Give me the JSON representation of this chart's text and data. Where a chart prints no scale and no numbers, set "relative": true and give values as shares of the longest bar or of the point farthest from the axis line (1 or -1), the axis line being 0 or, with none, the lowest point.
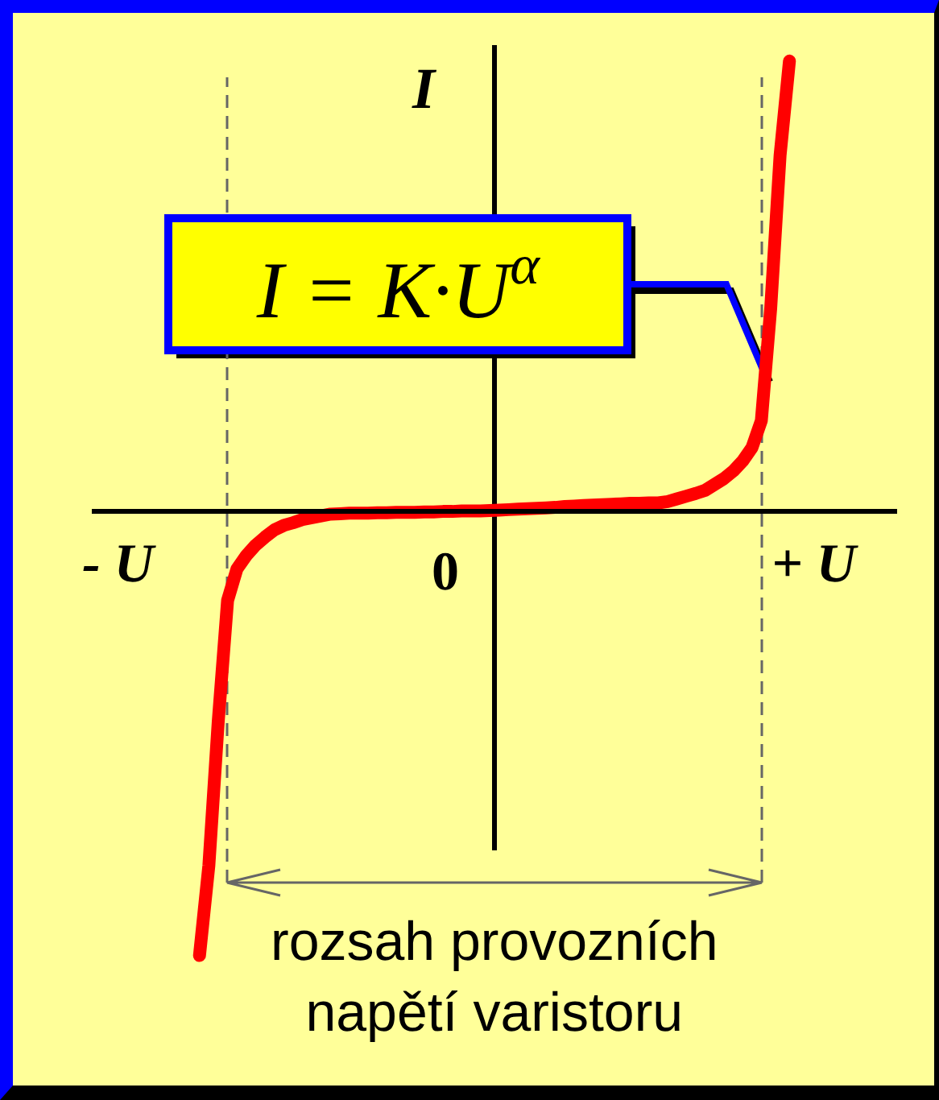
{
  "chart_data": {
    "type": "line",
    "relative": true,
    "ylabel": "I",
    "color": "#ff0000",
    "categories": [
      null,
      null,
      null,
      null,
      null,
      null,
      null,
      null,
      null,
      null,
      null,
      null,
      null,
      null,
      null,
      null,
      null,
      null,
      null,
      null,
      null,
      null,
      null,
      null,
      null,
      null,
      null,
      null,
      null,
      null,
      null,
      null,
      null,
      null,
      null,
      null,
      null,
      null,
      null,
      null,
      null,
      null,
      null,
      null,
      null,
      null,
      null,
      null,
      null,
      null,
      null,
      null,
      null,
      null,
      null,
      null,
      null,
      null,
      null,
      null,
      null,
      null,
      null,
      null,
      null,
      null,
      null,
      null,
      null,
      null,
      null,
      null,
      null,
      null,
      null,
      null,
      null,
      null,
      null,
      null,
      null,
      null,
      null,
      null,
      null,
      null
    ],
    "values": [
      null,
      null,
      null,
      null,
      null,
      null,
      null,
      null,
      null,
      null,
      null,
      -0.99,
      -0.79,
      -0.47,
      -0.2,
      -0.13,
      -0.1,
      -0.077,
      -0.059,
      -0.043,
      -0.033,
      -0.027,
      -0.02,
      -0.016,
      -0.012,
      -0.008,
      -0.007,
      -0.006,
      -0.006,
      -0.006,
      -0.005,
      -0.005,
      -0.004,
      -0.004,
      -0.004,
      -0.003,
      -0.003,
      -0.002,
      -0.002,
      -0.001,
      -0.001,
      -0.001,
      0,
      0.001,
      0.002,
      0.003,
      0.004,
      0.005,
      0.006,
      0.007,
      0.009,
      0.01,
      0.011,
      0.012,
      0.013,
      0.014,
      0.015,
      0.016,
      0.016,
      0.017,
      0.017,
      0.02,
      0.026,
      0.032,
      0.038,
      0.045,
      0.058,
      0.071,
      0.088,
      0.11,
      0.14,
      0.2,
      0.45,
      0.79,
      1.0,
      null,
      null,
      null,
      null,
      null,
      null,
      null,
      null,
      null,
      null,
      null
    ],
    "annotations": [
      "0",
      "I = K·U$^{α}$",
      "- U",
      "+ U",
      "rozsah provozních napětí varistoru"
    ]
  }
}
